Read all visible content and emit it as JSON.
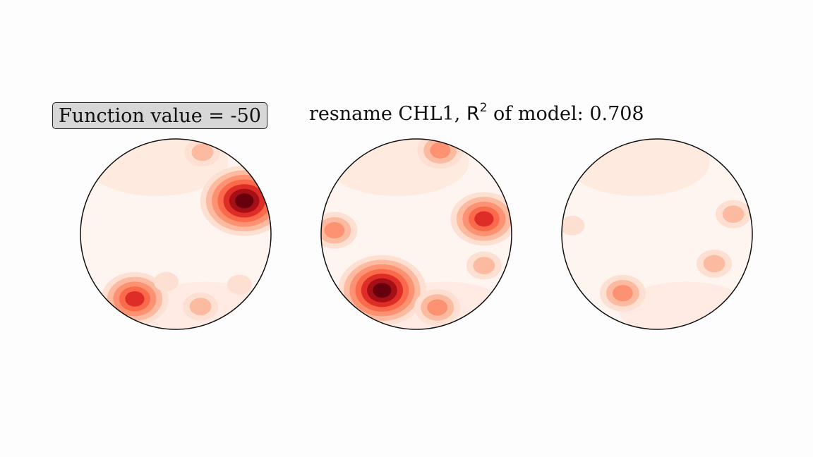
{
  "function_box": {
    "label": "Function value = -50"
  },
  "title": {
    "prefix": "resname CHL1, ",
    "r": "R",
    "sup": "2",
    "suffix": " of model: 0.708"
  },
  "colors": {
    "c0": "#fff5f0",
    "c1": "#fee0d2",
    "c2": "#fcbba1",
    "c3": "#fc9272",
    "c4": "#fb6a4a",
    "c5": "#de2d26",
    "c6": "#a50f15",
    "c7": "#67000d"
  },
  "chart_data": {
    "type": "heatmap",
    "panels": [
      {
        "hotspots": [
          {
            "x": 0.72,
            "y": -0.35,
            "level": 7
          },
          {
            "x": -0.43,
            "y": 0.68,
            "level": 5
          },
          {
            "x": 0.26,
            "y": 0.76,
            "level": 2
          },
          {
            "x": 0.28,
            "y": -0.86,
            "level": 2
          },
          {
            "x": 0.67,
            "y": 0.53,
            "level": 1
          },
          {
            "x": -0.1,
            "y": 0.5,
            "level": 1
          }
        ]
      },
      {
        "hotspots": [
          {
            "x": -0.36,
            "y": 0.59,
            "level": 7
          },
          {
            "x": 0.71,
            "y": -0.16,
            "level": 5
          },
          {
            "x": 0.22,
            "y": 0.77,
            "level": 3
          },
          {
            "x": -0.86,
            "y": -0.04,
            "level": 3
          },
          {
            "x": 0.25,
            "y": -0.88,
            "level": 3
          },
          {
            "x": 0.71,
            "y": 0.33,
            "level": 2
          }
        ]
      },
      {
        "hotspots": [
          {
            "x": -0.36,
            "y": 0.62,
            "level": 3
          },
          {
            "x": 0.8,
            "y": -0.21,
            "level": 2
          },
          {
            "x": 0.6,
            "y": 0.31,
            "level": 2
          },
          {
            "x": -0.89,
            "y": -0.09,
            "level": 1
          }
        ]
      }
    ]
  }
}
